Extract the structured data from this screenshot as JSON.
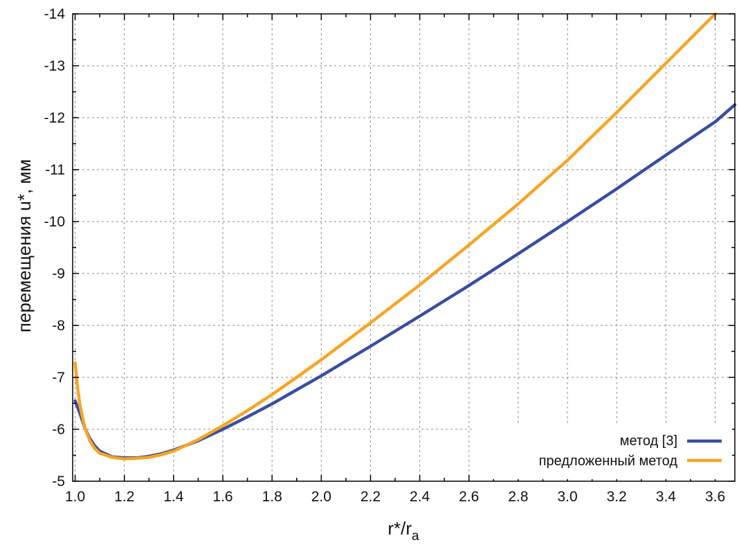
{
  "chart_data": {
    "type": "line",
    "title": "",
    "xlabel": "r*/r",
    "xlabel_subscript": "a",
    "ylabel": "перемещения u*, мм",
    "xlim": [
      0.99,
      3.68
    ],
    "ylim": [
      -5,
      -14
    ],
    "y_axis_inverted": true,
    "grid": true,
    "legend_position": "bottom-right",
    "x_ticks": [
      "1.0",
      "1.2",
      "1.4",
      "1.6",
      "1.8",
      "2.0",
      "2.2",
      "2.4",
      "2.6",
      "2.8",
      "3.0",
      "3.2",
      "3.4",
      "3.6"
    ],
    "y_ticks": [
      "-5",
      "-6",
      "-7",
      "-8",
      "-9",
      "-10",
      "-11",
      "-12",
      "-13",
      "-14"
    ],
    "series": [
      {
        "name": "метод [3]",
        "color": "#3a4ea0",
        "x": [
          1.0,
          1.02,
          1.04,
          1.06,
          1.08,
          1.1,
          1.15,
          1.2,
          1.25,
          1.3,
          1.35,
          1.4,
          1.5,
          1.6,
          1.7,
          1.8,
          1.9,
          2.0,
          2.2,
          2.4,
          2.6,
          2.8,
          3.0,
          3.2,
          3.4,
          3.6,
          3.68
        ],
        "y": [
          -6.55,
          -6.3,
          -6.02,
          -5.82,
          -5.68,
          -5.58,
          -5.47,
          -5.45,
          -5.45,
          -5.48,
          -5.53,
          -5.6,
          -5.78,
          -6.0,
          -6.24,
          -6.49,
          -6.76,
          -7.03,
          -7.6,
          -8.18,
          -8.77,
          -9.38,
          -10.0,
          -10.63,
          -11.28,
          -11.92,
          -12.25
        ]
      },
      {
        "name": "предложенный метод",
        "color": "#f5a623",
        "x": [
          1.0,
          1.01,
          1.02,
          1.04,
          1.06,
          1.08,
          1.1,
          1.15,
          1.2,
          1.25,
          1.3,
          1.35,
          1.4,
          1.5,
          1.6,
          1.7,
          1.8,
          1.9,
          2.0,
          2.2,
          2.4,
          2.6,
          2.8,
          3.0,
          3.2,
          3.4,
          3.6
        ],
        "y": [
          -7.28,
          -6.8,
          -6.45,
          -6.02,
          -5.78,
          -5.63,
          -5.54,
          -5.46,
          -5.43,
          -5.44,
          -5.46,
          -5.51,
          -5.58,
          -5.8,
          -6.07,
          -6.36,
          -6.67,
          -7.0,
          -7.34,
          -8.05,
          -8.78,
          -9.55,
          -10.34,
          -11.18,
          -12.1,
          -13.05,
          -14.0
        ]
      }
    ]
  }
}
